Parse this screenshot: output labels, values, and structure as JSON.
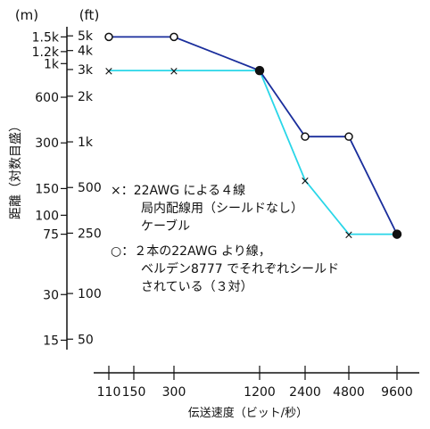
{
  "chart_data": {
    "type": "line",
    "title": "",
    "xlabel": "伝送速度（ビット/秒）",
    "ylabel": "距離（対数目盛）",
    "x_scale": "categorical",
    "y_scale": "log",
    "ylim_m": [
      13,
      1750
    ],
    "grid": false,
    "x_ticks": [
      "110",
      "150",
      "300",
      "1200",
      "2400",
      "4800",
      "9600"
    ],
    "y_left_unit": "(m)",
    "y_right_unit": "(ft)",
    "y_left_ticks": [
      {
        "label": "1.5k",
        "m": 1500
      },
      {
        "label": "1.2k",
        "m": 1200
      },
      {
        "label": "1k",
        "m": 1000
      },
      {
        "label": "600",
        "m": 600
      },
      {
        "label": "300",
        "m": 300
      },
      {
        "label": "150",
        "m": 150
      },
      {
        "label": "100",
        "m": 100
      },
      {
        "label": "75",
        "m": 75
      },
      {
        "label": "30",
        "m": 30
      },
      {
        "label": "15",
        "m": 15
      }
    ],
    "y_right_ticks": [
      {
        "label": "5k",
        "ft": 5000
      },
      {
        "label": "4k",
        "ft": 4000
      },
      {
        "label": "3k",
        "ft": 3000
      },
      {
        "label": "2k",
        "ft": 2000
      },
      {
        "label": "1k",
        "ft": 1000
      },
      {
        "label": "500",
        "ft": 500
      },
      {
        "label": "250",
        "ft": 250
      },
      {
        "label": "100",
        "ft": 100
      },
      {
        "label": "50",
        "ft": 50
      }
    ],
    "series": [
      {
        "key": "pair_cable",
        "color": "#1a2e9c",
        "marker": "circle",
        "points": [
          {
            "x": "110",
            "y": 1500
          },
          {
            "x": "300",
            "y": 1500
          },
          {
            "x": "1200",
            "y": 900
          },
          {
            "x": "2400",
            "y": 330
          },
          {
            "x": "4800",
            "y": 330
          },
          {
            "x": "9600",
            "y": 75
          }
        ]
      },
      {
        "key": "four_wire",
        "color": "#29d6e8",
        "marker": "cross",
        "points": [
          {
            "x": "110",
            "y": 900
          },
          {
            "x": "300",
            "y": 900
          },
          {
            "x": "1200",
            "y": 900
          },
          {
            "x": "2400",
            "y": 170
          },
          {
            "x": "4800",
            "y": 75
          },
          {
            "x": "9600",
            "y": 75
          }
        ]
      }
    ],
    "legend": {
      "placement": "center",
      "cross_lines": [
        "×：22AWG による４線",
        "局内配線用（シールドなし）",
        "ケーブル"
      ],
      "circle_lines": [
        "○：２本の22AWG より線，",
        "ベルデン8777 でそれぞれシールド",
        "されている（３対）"
      ]
    }
  }
}
